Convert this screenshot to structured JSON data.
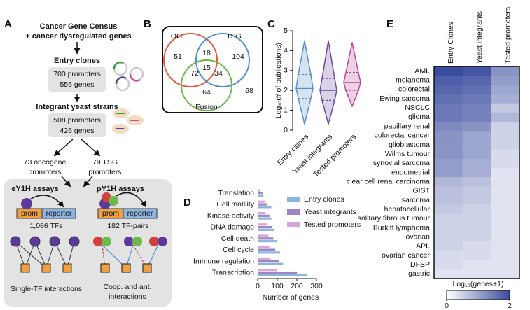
{
  "panel_labels": [
    "A",
    "B",
    "C",
    "D",
    "E"
  ],
  "panel_a": {
    "source": [
      "Cancer Gene Census",
      "+ cancer dysregulated genes"
    ],
    "entry_clones": {
      "title": "Entry clones",
      "lines": [
        "700 promoters",
        "556 genes"
      ]
    },
    "integrants": {
      "title": "Integrant yeast strains",
      "lines": [
        "508 promoters",
        "426 genes"
      ]
    },
    "oncogene": [
      "73 oncogene",
      "promoters"
    ],
    "tsg": [
      "79 TSG",
      "promoters"
    ],
    "ey1h": {
      "title": "eY1H assays",
      "prom": "prom",
      "reporter": "reporter",
      "count": "1,086 TFs",
      "caption": [
        "Single-TF interactions"
      ]
    },
    "py1h": {
      "title": "pY1H assays",
      "prom": "prom",
      "reporter": "reporter",
      "count": "182 TF-pairs",
      "caption": [
        "Coop. and ant.",
        "interactions"
      ]
    }
  },
  "panel_b": {
    "sets": [
      {
        "label": "OG",
        "color": "#e05a3c"
      },
      {
        "label": "TSG",
        "color": "#4b8fd0"
      },
      {
        "label": "Fusion",
        "color": "#6cb84c"
      }
    ],
    "regions": [
      51,
      18,
      104,
      72,
      15,
      34,
      64,
      68
    ]
  },
  "chart_data": [
    {
      "type": "violin",
      "y_label": "Log₁₀(# of publications)",
      "categories": [
        "Entry clones",
        "Yeast integrants",
        "Tested promoters"
      ],
      "colors": [
        "#5b8fc9",
        "#6d4a9a",
        "#b3479a"
      ],
      "stats": [
        {
          "min": 0.3,
          "q1": 1.6,
          "median": 2.1,
          "q3": 2.8,
          "max": 4.5
        },
        {
          "min": 0.3,
          "q1": 1.5,
          "median": 2.0,
          "q3": 2.6,
          "max": 4.5
        },
        {
          "min": 1.2,
          "q1": 2.0,
          "median": 2.4,
          "q3": 2.9,
          "max": 4.4
        }
      ],
      "ylim": [
        0,
        5
      ],
      "yticks": [
        0,
        1,
        2,
        3,
        4,
        5
      ]
    },
    {
      "type": "hbar",
      "x_label": "Number of genes",
      "categories": [
        "Translation",
        "Cell motility",
        "Kinase activity",
        "DNA damage",
        "Cell death",
        "Cell cycle",
        "Immune regulation",
        "Transcription"
      ],
      "series": [
        {
          "name": "Entry clones",
          "color": "#8fb4de",
          "values": [
            30,
            70,
            70,
            85,
            100,
            115,
            130,
            255
          ]
        },
        {
          "name": "Yeast integrants",
          "color": "#9b87c4",
          "values": [
            25,
            50,
            60,
            75,
            80,
            90,
            110,
            200
          ]
        },
        {
          "name": "Tested promoters",
          "color": "#d9a6d6",
          "values": [
            15,
            35,
            40,
            50,
            55,
            60,
            65,
            100
          ]
        }
      ],
      "xlim": [
        0,
        300
      ],
      "xticks": [
        0,
        100,
        200,
        300
      ],
      "legend": "upper right"
    },
    {
      "type": "heatmap",
      "columns": [
        "Entry Clones",
        "Yeast integrants",
        "Tested promoters"
      ],
      "rows": [
        "AML",
        "melanoma",
        "colorectal",
        "Ewing sarcoma",
        "NSCLC",
        "glioma",
        "papillary renal",
        "colorectal cancer",
        "glioblastoma",
        "Wilms tumour",
        "synovial sarcoma",
        "endometrial",
        "clear cell renal carcinoma",
        "GIST",
        "sarcoma",
        "hepatocellular",
        "solitary fibrous tumour",
        "Burkitt lymphoma",
        "ovarian",
        "APL",
        "ovarian cancer",
        "DFSP",
        "gastric"
      ],
      "values": [
        [
          2.0,
          1.9,
          1.2
        ],
        [
          1.8,
          1.7,
          1.1
        ],
        [
          1.7,
          1.6,
          1.0
        ],
        [
          1.6,
          1.5,
          0.9
        ],
        [
          1.5,
          1.4,
          0.6
        ],
        [
          1.5,
          1.4,
          0.8
        ],
        [
          1.3,
          1.2,
          0.5
        ],
        [
          1.2,
          1.0,
          0.5
        ],
        [
          1.2,
          1.0,
          0.5
        ],
        [
          1.2,
          1.0,
          0.4
        ],
        [
          1.1,
          0.9,
          0.4
        ],
        [
          1.1,
          0.9,
          0.3
        ],
        [
          0.8,
          0.7,
          0.3
        ],
        [
          0.7,
          0.6,
          0.3
        ],
        [
          0.7,
          0.6,
          0.3
        ],
        [
          0.6,
          0.5,
          0.3
        ],
        [
          0.5,
          0.5,
          0.3
        ],
        [
          0.5,
          0.5,
          0.3
        ],
        [
          0.5,
          0.5,
          0.3
        ],
        [
          0.5,
          0.4,
          0.3
        ],
        [
          0.4,
          0.4,
          0.3
        ],
        [
          0.4,
          0.3,
          0.3
        ],
        [
          0.3,
          0.3,
          0.3
        ]
      ],
      "colorbar": {
        "label": "Log₁₀(genes+1)",
        "lim": [
          0,
          2
        ],
        "ticks": [
          0,
          2
        ],
        "colors": [
          "#ffffff",
          "#3a4c9e"
        ]
      }
    }
  ]
}
